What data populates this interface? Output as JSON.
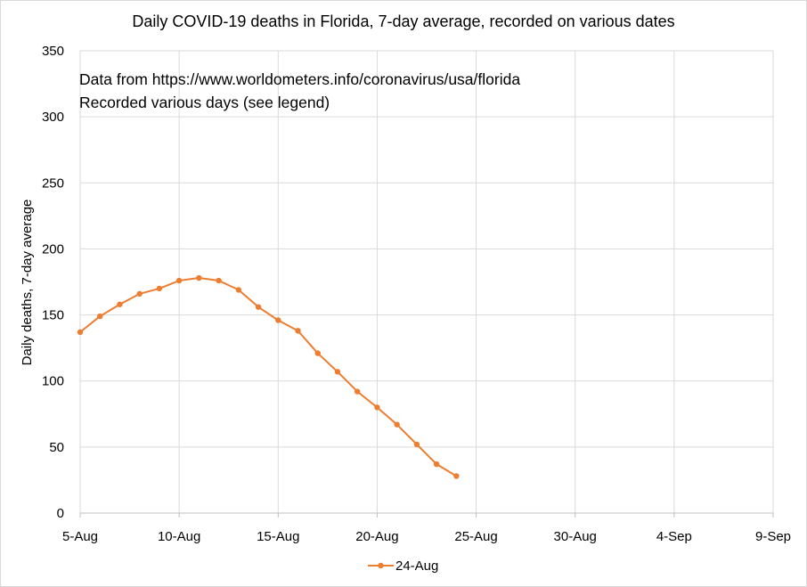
{
  "chart_data": {
    "type": "line",
    "title": "Daily COVID-19 deaths in Florida, 7-day average, recorded on various dates",
    "xlabel": "",
    "ylabel": "Daily deaths, 7-day average",
    "xlim": [
      "5-Aug",
      "9-Sep"
    ],
    "ylim": [
      0,
      350
    ],
    "x_ticks": [
      "5-Aug",
      "10-Aug",
      "15-Aug",
      "20-Aug",
      "25-Aug",
      "30-Aug",
      "4-Sep",
      "9-Sep"
    ],
    "y_ticks": [
      0,
      50,
      100,
      150,
      200,
      250,
      300,
      350
    ],
    "grid": true,
    "legend_position": "bottom",
    "annotations": [
      "Data from https://www.worldometers.info/coronavirus/usa/florida",
      "Recorded  various days (see legend)"
    ],
    "series": [
      {
        "name": "24-Aug",
        "color": "#ed7d31",
        "x": [
          "5-Aug",
          "6-Aug",
          "7-Aug",
          "8-Aug",
          "9-Aug",
          "10-Aug",
          "11-Aug",
          "12-Aug",
          "13-Aug",
          "14-Aug",
          "15-Aug",
          "16-Aug",
          "17-Aug",
          "18-Aug",
          "19-Aug",
          "20-Aug",
          "21-Aug",
          "22-Aug",
          "23-Aug",
          "24-Aug"
        ],
        "values": [
          137,
          149,
          158,
          166,
          170,
          176,
          178,
          176,
          169,
          156,
          146,
          138,
          121,
          107,
          92,
          80,
          67,
          52,
          37,
          28
        ]
      }
    ]
  }
}
